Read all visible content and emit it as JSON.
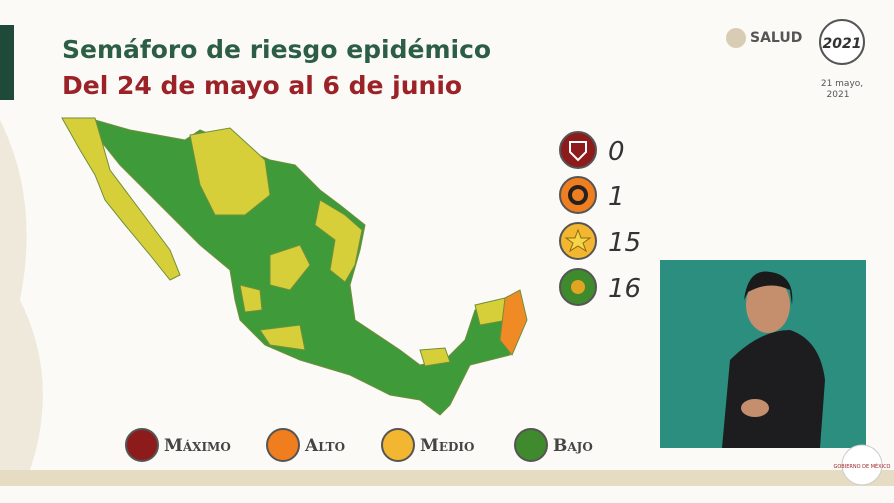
{
  "header": {
    "title": "Semáforo de riesgo epidémico",
    "subtitle": "Del 24 de mayo al 6 de junio"
  },
  "logos": {
    "salud": "SALUD",
    "year": "2021",
    "date": [
      "21 mayo,",
      "2021"
    ]
  },
  "counts": [
    0,
    1,
    15,
    16
  ],
  "legend": [
    "Máximo",
    "Alto",
    "Medio",
    "Bajo"
  ],
  "footer": {
    "government": "GOBIERNO DE MÉXICO"
  }
}
